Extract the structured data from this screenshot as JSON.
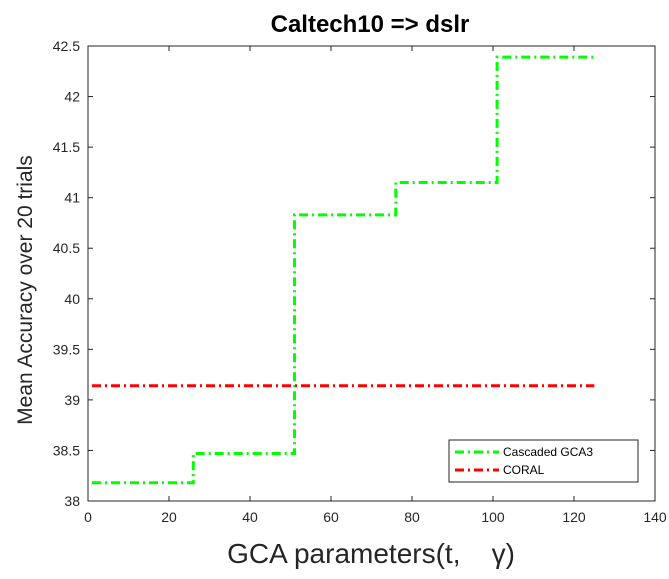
{
  "chart_data": {
    "type": "line",
    "title": "Caltech10 => dslr",
    "xlabel": "GCA parameters(t,    γ)",
    "ylabel": "Mean Accuracy over 20 trials",
    "xlim": [
      0,
      140
    ],
    "ylim": [
      38,
      42.5
    ],
    "xticks": [
      "0",
      "20",
      "40",
      "60",
      "80",
      "100",
      "120",
      "140"
    ],
    "yticks": [
      "38",
      "38.5",
      "39",
      "39.5",
      "40",
      "40.5",
      "41",
      "41.5",
      "42",
      "42.5"
    ],
    "grid": false,
    "legend_position": "bottom-right",
    "series": [
      {
        "name": "Cascaded GCA3",
        "color": "#00ff00",
        "style": "dash-dot",
        "x": [
          1,
          25,
          26,
          50,
          51,
          75,
          76,
          100,
          101,
          125
        ],
        "y": [
          38.18,
          38.18,
          38.47,
          38.47,
          40.83,
          40.83,
          41.15,
          41.15,
          42.39,
          42.39
        ]
      },
      {
        "name": "CORAL",
        "color": "#ff0000",
        "style": "dash-dot",
        "x": [
          1,
          125
        ],
        "y": [
          39.14,
          39.14
        ]
      }
    ]
  }
}
